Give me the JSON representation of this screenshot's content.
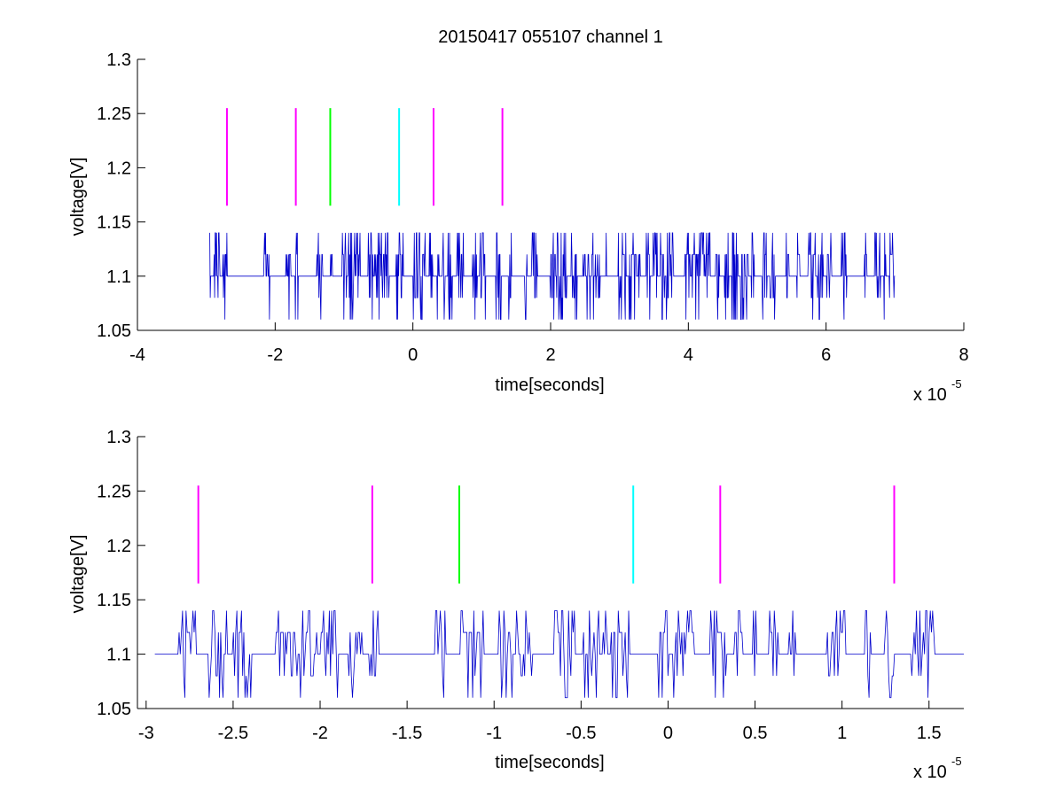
{
  "chart_data": [
    {
      "type": "line",
      "title": "20150417 055107 channel 1",
      "xlabel": "time[seconds]",
      "ylabel": "voltage[V]",
      "x_multiplier": {
        "base": "x 10",
        "exponent": "-5"
      },
      "xlim": [
        -4e-05,
        8e-05
      ],
      "ylim": [
        1.05,
        1.3
      ],
      "xticks": [
        -4e-05,
        -2e-05,
        0,
        2e-05,
        4e-05,
        6e-05,
        8e-05
      ],
      "xtick_labels": [
        "-4",
        "-2",
        "0",
        "2",
        "4",
        "6",
        "8"
      ],
      "yticks": [
        1.05,
        1.1,
        1.15,
        1.2,
        1.25,
        1.3
      ],
      "ytick_labels": [
        "1.05",
        "1.1",
        "1.15",
        "1.2",
        "1.25",
        "1.3"
      ],
      "grid": false,
      "series": [
        {
          "color": "#0000cc",
          "x_range": [
            -2.95e-05,
            7e-05
          ],
          "levels": [
            1.06,
            1.08,
            1.1,
            1.12,
            1.14
          ],
          "baseline": 1.1,
          "description_of_trace": "noisy digital-like voltage trace between 1.06 and 1.14"
        }
      ],
      "markers": [
        {
          "x": -2.7e-05,
          "y0": 1.165,
          "y1": 1.255,
          "color": "#ff00ff"
        },
        {
          "x": -1.7e-05,
          "y0": 1.165,
          "y1": 1.255,
          "color": "#ff00ff"
        },
        {
          "x": -1.2e-05,
          "y0": 1.165,
          "y1": 1.255,
          "color": "#00ff00"
        },
        {
          "x": -2e-06,
          "y0": 1.165,
          "y1": 1.255,
          "color": "#00ffff"
        },
        {
          "x": 3e-06,
          "y0": 1.165,
          "y1": 1.255,
          "color": "#ff00ff"
        },
        {
          "x": 1.3e-05,
          "y0": 1.165,
          "y1": 1.255,
          "color": "#ff00ff"
        }
      ]
    },
    {
      "type": "line",
      "title": "",
      "xlabel": "time[seconds]",
      "ylabel": "voltage[V]",
      "x_multiplier": {
        "base": "x 10",
        "exponent": "-5"
      },
      "xlim": [
        -3.05e-05,
        1.7e-05
      ],
      "ylim": [
        1.05,
        1.3
      ],
      "xticks": [
        -3e-05,
        -2.5e-05,
        -2e-05,
        -1.5e-05,
        -1e-05,
        -5e-06,
        0,
        5e-06,
        1e-05,
        1.5e-05
      ],
      "xtick_labels": [
        "-3",
        "-2.5",
        "-2",
        "-1.5",
        "-1",
        "-0.5",
        "0",
        "0.5",
        "1",
        "1.5"
      ],
      "yticks": [
        1.05,
        1.1,
        1.15,
        1.2,
        1.25,
        1.3
      ],
      "ytick_labels": [
        "1.05",
        "1.1",
        "1.15",
        "1.2",
        "1.25",
        "1.3"
      ],
      "grid": false,
      "series": [
        {
          "color": "#0000cc",
          "x_range": [
            -2.95e-05,
            1.7e-05
          ],
          "levels": [
            1.06,
            1.08,
            1.1,
            1.12,
            1.14
          ],
          "baseline": 1.1
        }
      ],
      "markers": [
        {
          "x": -2.7e-05,
          "y0": 1.165,
          "y1": 1.255,
          "color": "#ff00ff"
        },
        {
          "x": -1.7e-05,
          "y0": 1.165,
          "y1": 1.255,
          "color": "#ff00ff"
        },
        {
          "x": -1.2e-05,
          "y0": 1.165,
          "y1": 1.255,
          "color": "#00ff00"
        },
        {
          "x": -2e-06,
          "y0": 1.165,
          "y1": 1.255,
          "color": "#00ffff"
        },
        {
          "x": 3e-06,
          "y0": 1.165,
          "y1": 1.255,
          "color": "#ff00ff"
        },
        {
          "x": 1.3e-05,
          "y0": 1.165,
          "y1": 1.255,
          "color": "#ff00ff"
        }
      ]
    }
  ]
}
